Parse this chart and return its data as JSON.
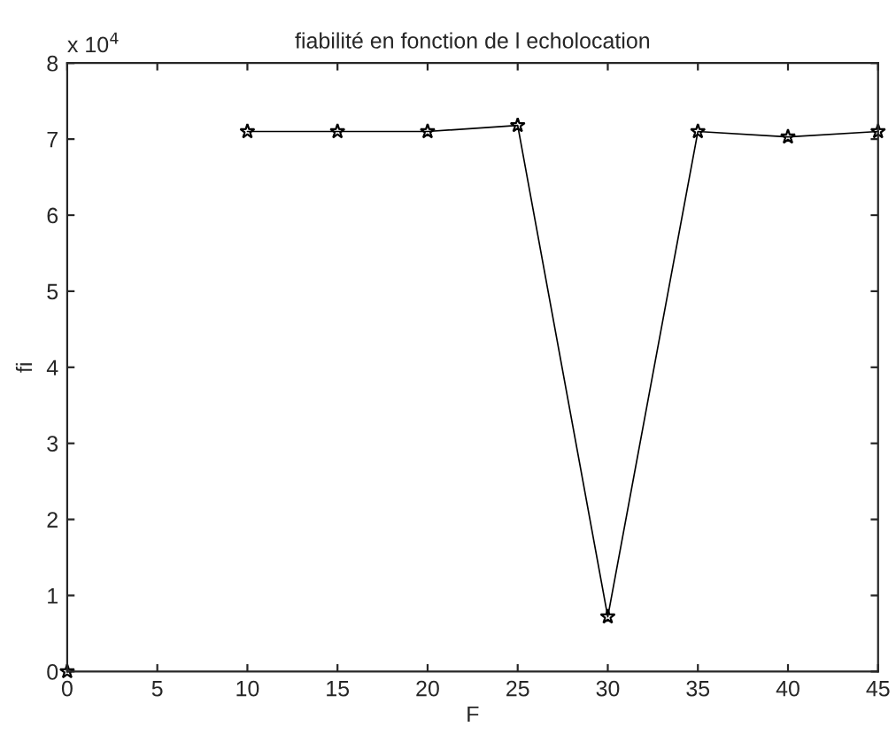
{
  "chart_data": {
    "type": "line",
    "title": "fiabilité en fonction de l echolocation",
    "xlabel": "F",
    "ylabel": "fi",
    "annotations": [
      "x 10$^{4}$"
    ],
    "x": [
      0,
      5,
      10,
      15,
      20,
      25,
      30,
      35,
      40,
      45
    ],
    "series": [
      {
        "color": "#000000",
        "values": [
          0,
          null,
          7.1,
          7.1,
          7.1,
          7.18,
          0.72,
          7.1,
          7.03,
          7.1
        ]
      }
    ],
    "xlim": [
      0,
      45
    ],
    "xticks": [
      0,
      5,
      10,
      15,
      20,
      25,
      30,
      35,
      40,
      45
    ],
    "ylim": [
      0,
      8
    ],
    "yticks": [
      0,
      1,
      2,
      3,
      4,
      5,
      6,
      7,
      8
    ],
    "marker": "star",
    "line_style": "solid",
    "grid": false,
    "legend": false
  }
}
